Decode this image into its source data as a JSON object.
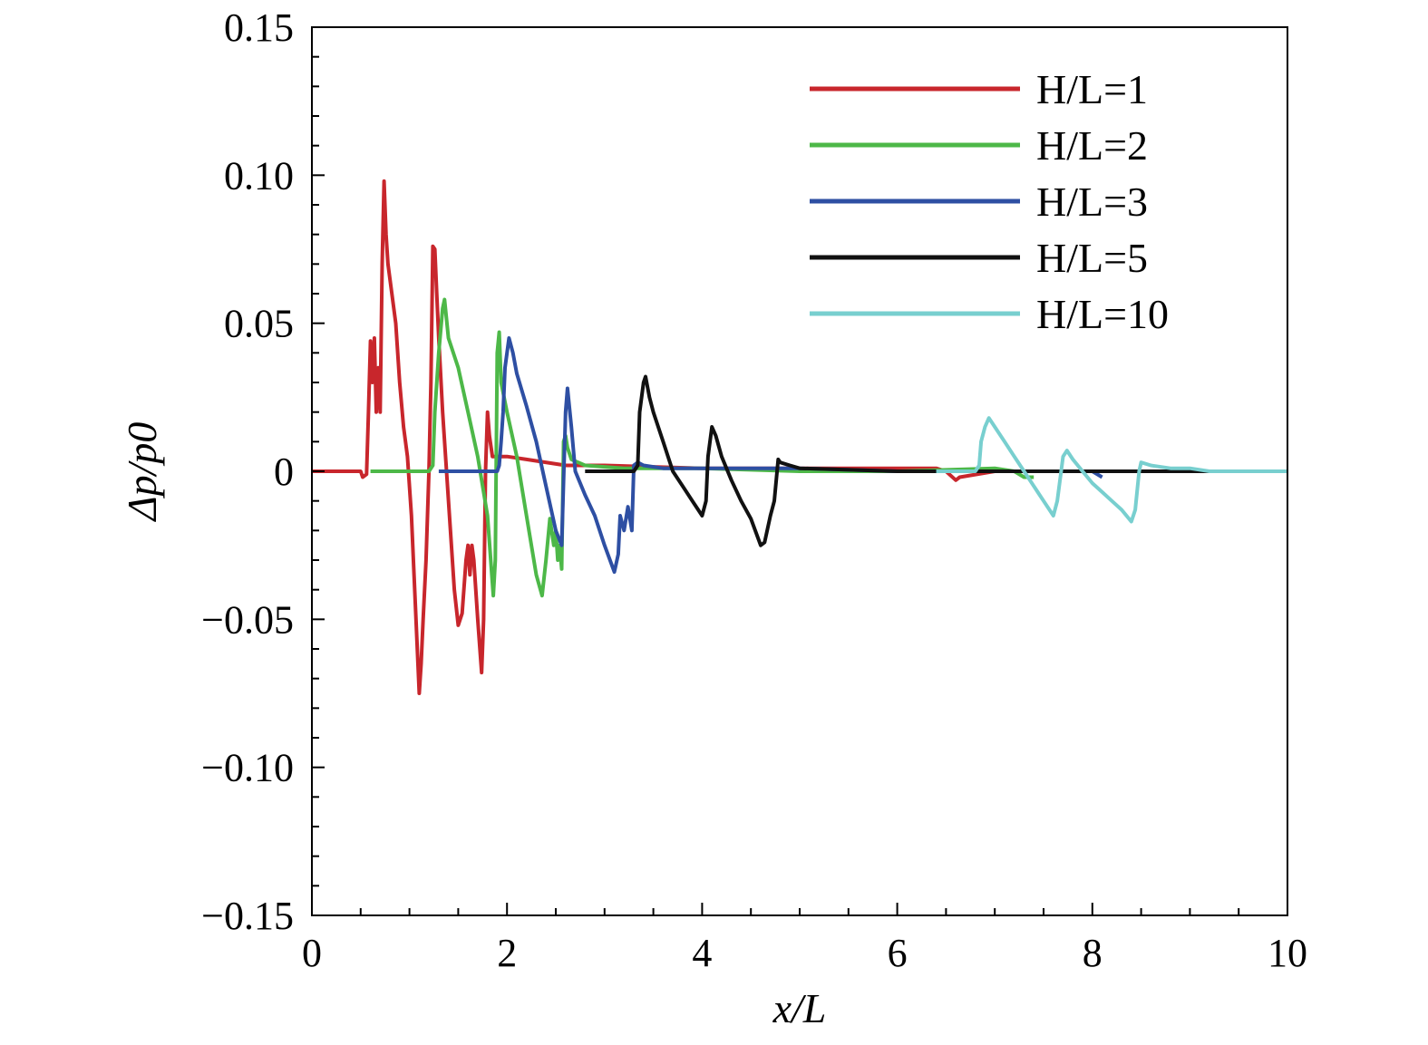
{
  "chart_data": {
    "type": "line",
    "xlabel": "x/L",
    "ylabel": "Δp/p0",
    "xlim": [
      0,
      10
    ],
    "ylim": [
      -0.15,
      0.15
    ],
    "x_ticks": [
      "0",
      "2",
      "4",
      "6",
      "8",
      "10"
    ],
    "y_ticks": [
      "−0.15",
      "−0.10",
      "−0.05",
      "0",
      "0.05",
      "0.10",
      "0.15"
    ],
    "legend_position": "top-right",
    "grid": false,
    "series": [
      {
        "name": "H/L=1",
        "color": "#c8262c",
        "points": [
          [
            0,
            0
          ],
          [
            0.5,
            0
          ],
          [
            0.52,
            -0.002
          ],
          [
            0.56,
            -0.001
          ],
          [
            0.58,
            0.02
          ],
          [
            0.6,
            0.044
          ],
          [
            0.62,
            0.03
          ],
          [
            0.64,
            0.045
          ],
          [
            0.66,
            0.02
          ],
          [
            0.68,
            0.035
          ],
          [
            0.7,
            0.02
          ],
          [
            0.72,
            0.07
          ],
          [
            0.74,
            0.098
          ],
          [
            0.76,
            0.08
          ],
          [
            0.78,
            0.07
          ],
          [
            0.82,
            0.06
          ],
          [
            0.86,
            0.05
          ],
          [
            0.9,
            0.03
          ],
          [
            0.94,
            0.015
          ],
          [
            0.98,
            0.005
          ],
          [
            1.02,
            -0.015
          ],
          [
            1.06,
            -0.045
          ],
          [
            1.1,
            -0.075
          ],
          [
            1.12,
            -0.065
          ],
          [
            1.14,
            -0.05
          ],
          [
            1.17,
            -0.03
          ],
          [
            1.2,
            0.0
          ],
          [
            1.22,
            0.03
          ],
          [
            1.24,
            0.076
          ],
          [
            1.26,
            0.075
          ],
          [
            1.28,
            0.06
          ],
          [
            1.3,
            0.045
          ],
          [
            1.34,
            0.02
          ],
          [
            1.38,
            0.0
          ],
          [
            1.42,
            -0.02
          ],
          [
            1.46,
            -0.04
          ],
          [
            1.5,
            -0.052
          ],
          [
            1.54,
            -0.048
          ],
          [
            1.58,
            -0.03
          ],
          [
            1.6,
            -0.025
          ],
          [
            1.62,
            -0.035
          ],
          [
            1.64,
            -0.025
          ],
          [
            1.66,
            -0.03
          ],
          [
            1.7,
            -0.05
          ],
          [
            1.74,
            -0.068
          ],
          [
            1.76,
            -0.05
          ],
          [
            1.78,
            0.0
          ],
          [
            1.8,
            0.02
          ],
          [
            1.82,
            0.012
          ],
          [
            1.85,
            0.005
          ],
          [
            1.9,
            0.005
          ],
          [
            2.0,
            0.005
          ],
          [
            2.2,
            0.004
          ],
          [
            2.6,
            0.002
          ],
          [
            3.0,
            0.002
          ],
          [
            4.0,
            0.001
          ],
          [
            5.0,
            0.001
          ],
          [
            6.0,
            0.001
          ],
          [
            6.4,
            0.001
          ],
          [
            6.5,
            0.0
          ],
          [
            6.6,
            -0.003
          ],
          [
            6.64,
            -0.002
          ],
          [
            7.0,
            0
          ],
          [
            8.0,
            0
          ]
        ]
      },
      {
        "name": "H/L=2",
        "color": "#4db848",
        "points": [
          [
            0.6,
            0
          ],
          [
            1.2,
            0
          ],
          [
            1.24,
            0.002
          ],
          [
            1.26,
            0.02
          ],
          [
            1.3,
            0.04
          ],
          [
            1.34,
            0.055
          ],
          [
            1.36,
            0.058
          ],
          [
            1.4,
            0.045
          ],
          [
            1.5,
            0.035
          ],
          [
            1.6,
            0.02
          ],
          [
            1.7,
            0.005
          ],
          [
            1.8,
            -0.015
          ],
          [
            1.86,
            -0.042
          ],
          [
            1.88,
            -0.03
          ],
          [
            1.9,
            0.04
          ],
          [
            1.92,
            0.047
          ],
          [
            1.94,
            0.03
          ],
          [
            2.0,
            0.02
          ],
          [
            2.1,
            0.005
          ],
          [
            2.2,
            -0.015
          ],
          [
            2.3,
            -0.035
          ],
          [
            2.36,
            -0.042
          ],
          [
            2.4,
            -0.03
          ],
          [
            2.44,
            -0.016
          ],
          [
            2.48,
            -0.025
          ],
          [
            2.5,
            -0.02
          ],
          [
            2.52,
            -0.03
          ],
          [
            2.54,
            -0.025
          ],
          [
            2.56,
            -0.033
          ],
          [
            2.58,
            0.01
          ],
          [
            2.6,
            0.012
          ],
          [
            2.62,
            0.008
          ],
          [
            2.66,
            0.004
          ],
          [
            2.8,
            0.002
          ],
          [
            3.2,
            0.001
          ],
          [
            4.0,
            0.001
          ],
          [
            5.0,
            0.0
          ],
          [
            6.0,
            0.0
          ],
          [
            7.0,
            0.001
          ],
          [
            7.2,
            0.0
          ],
          [
            7.3,
            -0.002
          ],
          [
            7.4,
            -0.002
          ]
        ]
      },
      {
        "name": "H/L=3",
        "color": "#2e4fa3",
        "points": [
          [
            1.3,
            0
          ],
          [
            1.9,
            0
          ],
          [
            1.92,
            0.002
          ],
          [
            1.94,
            0.01
          ],
          [
            1.96,
            0.02
          ],
          [
            1.98,
            0.035
          ],
          [
            2.02,
            0.045
          ],
          [
            2.06,
            0.04
          ],
          [
            2.1,
            0.033
          ],
          [
            2.2,
            0.022
          ],
          [
            2.3,
            0.01
          ],
          [
            2.4,
            -0.005
          ],
          [
            2.5,
            -0.02
          ],
          [
            2.56,
            -0.025
          ],
          [
            2.6,
            0.02
          ],
          [
            2.62,
            0.028
          ],
          [
            2.66,
            0.015
          ],
          [
            2.7,
            0.0
          ],
          [
            2.8,
            -0.008
          ],
          [
            2.9,
            -0.015
          ],
          [
            3.0,
            -0.025
          ],
          [
            3.1,
            -0.034
          ],
          [
            3.14,
            -0.028
          ],
          [
            3.16,
            -0.015
          ],
          [
            3.2,
            -0.02
          ],
          [
            3.24,
            -0.012
          ],
          [
            3.28,
            -0.02
          ],
          [
            3.3,
            0.002
          ],
          [
            3.34,
            0.003
          ],
          [
            3.4,
            0.002
          ],
          [
            3.6,
            0.001
          ],
          [
            4.0,
            0.001
          ],
          [
            5.0,
            0.001
          ],
          [
            6.0,
            0.0
          ],
          [
            7.0,
            0.0
          ],
          [
            8.0,
            0.0
          ],
          [
            8.1,
            -0.002
          ]
        ]
      },
      {
        "name": "H/L=5",
        "color": "#111111",
        "points": [
          [
            2.8,
            0
          ],
          [
            3.3,
            0
          ],
          [
            3.34,
            0.002
          ],
          [
            3.36,
            0.02
          ],
          [
            3.4,
            0.03
          ],
          [
            3.42,
            0.032
          ],
          [
            3.46,
            0.025
          ],
          [
            3.5,
            0.02
          ],
          [
            3.6,
            0.01
          ],
          [
            3.7,
            0.0
          ],
          [
            3.8,
            -0.005
          ],
          [
            3.9,
            -0.01
          ],
          [
            4.0,
            -0.015
          ],
          [
            4.04,
            -0.01
          ],
          [
            4.06,
            0.005
          ],
          [
            4.1,
            0.015
          ],
          [
            4.14,
            0.012
          ],
          [
            4.2,
            0.005
          ],
          [
            4.3,
            -0.003
          ],
          [
            4.4,
            -0.01
          ],
          [
            4.5,
            -0.016
          ],
          [
            4.6,
            -0.025
          ],
          [
            4.64,
            -0.024
          ],
          [
            4.7,
            -0.015
          ],
          [
            4.74,
            -0.01
          ],
          [
            4.78,
            0.004
          ],
          [
            4.8,
            0.003
          ],
          [
            4.9,
            0.002
          ],
          [
            5.0,
            0.001
          ],
          [
            6.0,
            0.0
          ],
          [
            7.0,
            0.0
          ],
          [
            8.0,
            0.0
          ],
          [
            9.0,
            0.0
          ],
          [
            9.6,
            0.0
          ]
        ]
      },
      {
        "name": "H/L=10",
        "color": "#78cfcf",
        "points": [
          [
            6.4,
            0
          ],
          [
            6.8,
            0
          ],
          [
            6.84,
            0.002
          ],
          [
            6.86,
            0.01
          ],
          [
            6.9,
            0.015
          ],
          [
            6.94,
            0.018
          ],
          [
            7.0,
            0.015
          ],
          [
            7.1,
            0.01
          ],
          [
            7.2,
            0.005
          ],
          [
            7.3,
            0.0
          ],
          [
            7.4,
            -0.005
          ],
          [
            7.5,
            -0.01
          ],
          [
            7.6,
            -0.015
          ],
          [
            7.64,
            -0.01
          ],
          [
            7.7,
            0.005
          ],
          [
            7.74,
            0.007
          ],
          [
            7.8,
            0.004
          ],
          [
            7.9,
            0.0
          ],
          [
            8.0,
            -0.004
          ],
          [
            8.1,
            -0.007
          ],
          [
            8.2,
            -0.01
          ],
          [
            8.3,
            -0.013
          ],
          [
            8.4,
            -0.017
          ],
          [
            8.44,
            -0.013
          ],
          [
            8.48,
            0.0
          ],
          [
            8.5,
            0.003
          ],
          [
            8.6,
            0.002
          ],
          [
            8.8,
            0.001
          ],
          [
            9.0,
            0.001
          ],
          [
            9.2,
            0.0
          ],
          [
            10.0,
            0.0
          ]
        ]
      }
    ]
  }
}
